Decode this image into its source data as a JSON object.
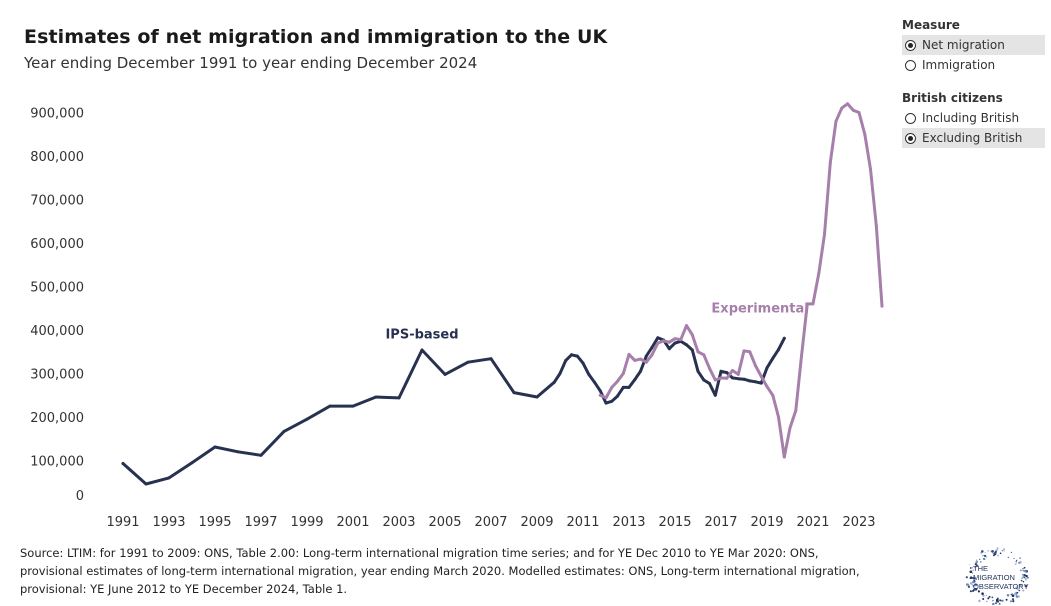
{
  "header": {
    "title": "Estimates of net migration and immigration to the UK",
    "subtitle": "Year ending December 1991 to year ending December 2024"
  },
  "filters": {
    "measure": {
      "title": "Measure",
      "options": [
        {
          "label": "Net migration",
          "selected": true
        },
        {
          "label": "Immigration",
          "selected": false
        }
      ]
    },
    "british": {
      "title": "British citizens",
      "options": [
        {
          "label": "Including British",
          "selected": false
        },
        {
          "label": "Excluding British",
          "selected": true
        }
      ]
    }
  },
  "source": "Source: LTIM: for 1991 to 2009: ONS, Table 2.00: Long-term international migration time series; and for YE Dec 2010 to YE Mar 2020: ONS, provisional estimates of long-term international migration, year ending March 2020. Modelled estimates: ONS, Long-term international migration, provisional: YE June 2012 to YE December 2024, Table 1.",
  "logo": {
    "line1": "THE",
    "line2": "MIGRATION",
    "line3": "OBSERVATORY"
  },
  "chart_data": {
    "type": "line",
    "title": "Estimates of net migration and immigration to the UK",
    "subtitle": "Year ending December 1991 to year ending December 2024",
    "xlabel": "",
    "ylabel": "",
    "xlim": [
      1990.5,
      2025.5
    ],
    "ylim": [
      0,
      950000
    ],
    "x_ticks": [
      "1991",
      "1993",
      "1995",
      "1997",
      "1999",
      "2001",
      "2003",
      "2005",
      "2007",
      "2009",
      "2011",
      "2013",
      "2015",
      "2017",
      "2019",
      "2021",
      "2023"
    ],
    "y_ticks": [
      {
        "value": 0,
        "label": "0"
      },
      {
        "value": 100000,
        "label": "100,000"
      },
      {
        "value": 200000,
        "label": "200,000"
      },
      {
        "value": 300000,
        "label": "300,000"
      },
      {
        "value": 400000,
        "label": "400,000"
      },
      {
        "value": 500000,
        "label": "500,000"
      },
      {
        "value": 600000,
        "label": "600,000"
      },
      {
        "value": 700000,
        "label": "700,000"
      },
      {
        "value": 800000,
        "label": "800,000"
      },
      {
        "value": 900000,
        "label": "900,000"
      }
    ],
    "grid": false,
    "series": [
      {
        "name": "IPS-based",
        "color": "#283250",
        "label_anchor": [
          2004.0,
          380000
        ],
        "points": [
          [
            1991,
            93000
          ],
          [
            1992,
            46000
          ],
          [
            1993,
            60000
          ],
          [
            1994,
            95000
          ],
          [
            1995,
            131000
          ],
          [
            1996,
            120000
          ],
          [
            1997,
            112000
          ],
          [
            1998,
            167000
          ],
          [
            1999,
            195000
          ],
          [
            2000,
            225000
          ],
          [
            2001,
            225000
          ],
          [
            2002,
            246000
          ],
          [
            2003,
            244000
          ],
          [
            2004,
            354000
          ],
          [
            2005,
            298000
          ],
          [
            2006,
            326000
          ],
          [
            2007,
            334000
          ],
          [
            2008,
            256000
          ],
          [
            2009,
            246000
          ],
          [
            2009.75,
            280000
          ],
          [
            2010,
            300000
          ],
          [
            2010.25,
            330000
          ],
          [
            2010.5,
            343000
          ],
          [
            2010.75,
            340000
          ],
          [
            2011,
            324000
          ],
          [
            2011.25,
            298000
          ],
          [
            2011.5,
            280000
          ],
          [
            2011.75,
            260000
          ],
          [
            2012,
            232000
          ],
          [
            2012.25,
            236000
          ],
          [
            2012.5,
            248000
          ],
          [
            2012.75,
            268000
          ],
          [
            2013,
            268000
          ],
          [
            2013.25,
            286000
          ],
          [
            2013.5,
            305000
          ],
          [
            2013.75,
            340000
          ],
          [
            2014,
            360000
          ],
          [
            2014.25,
            382000
          ],
          [
            2014.5,
            377000
          ],
          [
            2014.75,
            357000
          ],
          [
            2015,
            370000
          ],
          [
            2015.25,
            374000
          ],
          [
            2015.5,
            366000
          ],
          [
            2015.75,
            354000
          ],
          [
            2016,
            305000
          ],
          [
            2016.25,
            285000
          ],
          [
            2016.5,
            277000
          ],
          [
            2016.75,
            250000
          ],
          [
            2017,
            305000
          ],
          [
            2017.25,
            302000
          ],
          [
            2017.5,
            290000
          ],
          [
            2017.75,
            288000
          ],
          [
            2018,
            287000
          ],
          [
            2018.25,
            283000
          ],
          [
            2018.5,
            281000
          ],
          [
            2018.75,
            278000
          ],
          [
            2019,
            313000
          ],
          [
            2019.25,
            335000
          ],
          [
            2019.5,
            355000
          ],
          [
            2019.75,
            381000
          ]
        ]
      },
      {
        "name": "Experimental",
        "color": "#a67fab",
        "label_anchor": [
          2018.7,
          440000
        ],
        "points": [
          [
            2011.75,
            250000
          ],
          [
            2012,
            244000
          ],
          [
            2012.25,
            268000
          ],
          [
            2012.5,
            282000
          ],
          [
            2012.75,
            300000
          ],
          [
            2013,
            344000
          ],
          [
            2013.25,
            330000
          ],
          [
            2013.5,
            333000
          ],
          [
            2013.75,
            326000
          ],
          [
            2014,
            343000
          ],
          [
            2014.25,
            370000
          ],
          [
            2014.5,
            375000
          ],
          [
            2014.75,
            372000
          ],
          [
            2015,
            380000
          ],
          [
            2015.25,
            378000
          ],
          [
            2015.5,
            410000
          ],
          [
            2015.75,
            389000
          ],
          [
            2016,
            350000
          ],
          [
            2016.25,
            343000
          ],
          [
            2016.5,
            312000
          ],
          [
            2016.75,
            285000
          ],
          [
            2017,
            290000
          ],
          [
            2017.25,
            289000
          ],
          [
            2017.5,
            307000
          ],
          [
            2017.75,
            298000
          ],
          [
            2018,
            352000
          ],
          [
            2018.25,
            350000
          ],
          [
            2018.5,
            318000
          ],
          [
            2018.75,
            293000
          ],
          [
            2019,
            270000
          ],
          [
            2019.25,
            250000
          ],
          [
            2019.5,
            200000
          ],
          [
            2019.75,
            108000
          ],
          [
            2020,
            175000
          ],
          [
            2020.25,
            215000
          ],
          [
            2020.5,
            340000
          ],
          [
            2020.75,
            460000
          ],
          [
            2021,
            460000
          ],
          [
            2021.25,
            530000
          ],
          [
            2021.5,
            620000
          ],
          [
            2021.75,
            785000
          ],
          [
            2022,
            880000
          ],
          [
            2022.25,
            910000
          ],
          [
            2022.5,
            920000
          ],
          [
            2022.75,
            905000
          ],
          [
            2023,
            900000
          ],
          [
            2023.25,
            850000
          ],
          [
            2023.5,
            770000
          ],
          [
            2023.75,
            640000
          ],
          [
            2024,
            455000
          ]
        ]
      }
    ]
  }
}
